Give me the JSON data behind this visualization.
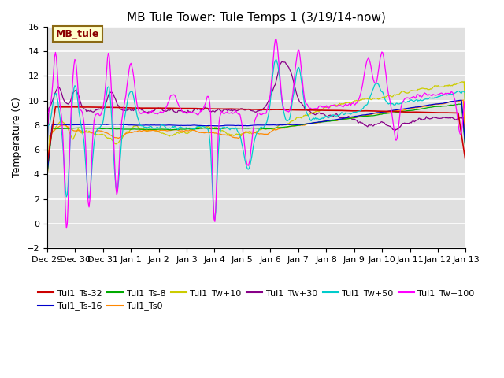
{
  "title": "MB Tule Tower: Tule Temps 1 (3/19/14-now)",
  "ylabel": "Temperature (C)",
  "ylim": [
    -2,
    16
  ],
  "yticks": [
    -2,
    0,
    2,
    4,
    6,
    8,
    10,
    12,
    14,
    16
  ],
  "x_labels": [
    "Dec 29",
    "Dec 30",
    "Dec 31",
    "Jan 1",
    "Jan 2",
    "Jan 3",
    "Jan 4",
    "Jan 5",
    "Jan 6",
    "Jan 7",
    "Jan 8",
    "Jan 9",
    "Jan 10",
    "Jan 11",
    "Jan 12",
    "Jan 13"
  ],
  "background_color": "#ffffff",
  "plot_bg_color": "#e0e0e0",
  "series_colors": {
    "Tul1_Ts-32": "#cc0000",
    "Tul1_Ts-16": "#0000cc",
    "Tul1_Ts-8": "#00aa00",
    "Tul1_Ts0": "#ff8800",
    "Tul1_Tw+10": "#cccc00",
    "Tul1_Tw+30": "#880088",
    "Tul1_Tw+50": "#00cccc",
    "Tul1_Tw+100": "#ff00ff"
  },
  "title_fontsize": 11,
  "label_fontsize": 9,
  "tick_fontsize": 8,
  "legend_fontsize": 8,
  "annotation_text": "MB_tule",
  "annotation_color": "#8B0000",
  "annotation_bg": "#ffffcc",
  "annotation_border": "#8B6914"
}
